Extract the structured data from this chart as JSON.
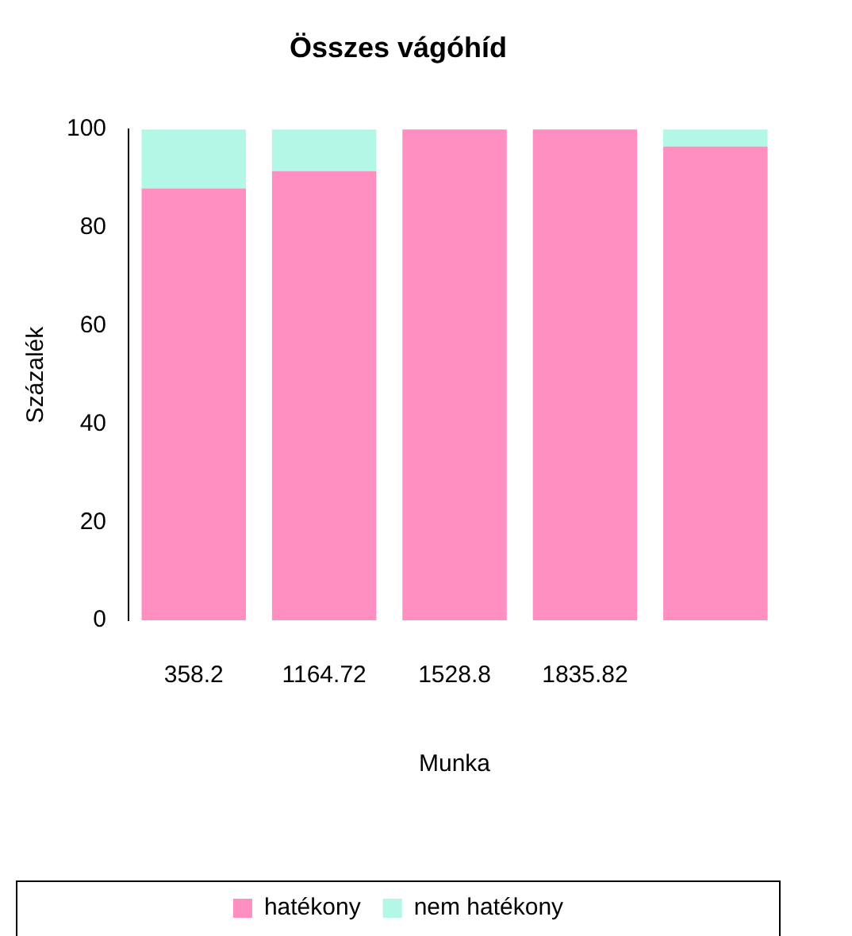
{
  "chart_data": {
    "type": "bar",
    "title": "Összes vágóhíd",
    "xlabel": "Munka",
    "ylabel": "Százalék",
    "categories": [
      "358.2",
      "1164.72",
      "1528.8",
      "1835.82",
      null
    ],
    "stacked": true,
    "legend": "bottom",
    "series": [
      {
        "name": "hatékony",
        "color": "#ff8fc0",
        "values": [
          88,
          91.5,
          100,
          100,
          96.5
        ]
      },
      {
        "name": "nem hatékony",
        "color": "#b3f7e6",
        "values": [
          12,
          8.5,
          0,
          0,
          3.5
        ]
      }
    ],
    "ylim": [
      0,
      100
    ],
    "yticks": [
      0,
      20,
      40,
      60,
      80,
      100
    ]
  }
}
